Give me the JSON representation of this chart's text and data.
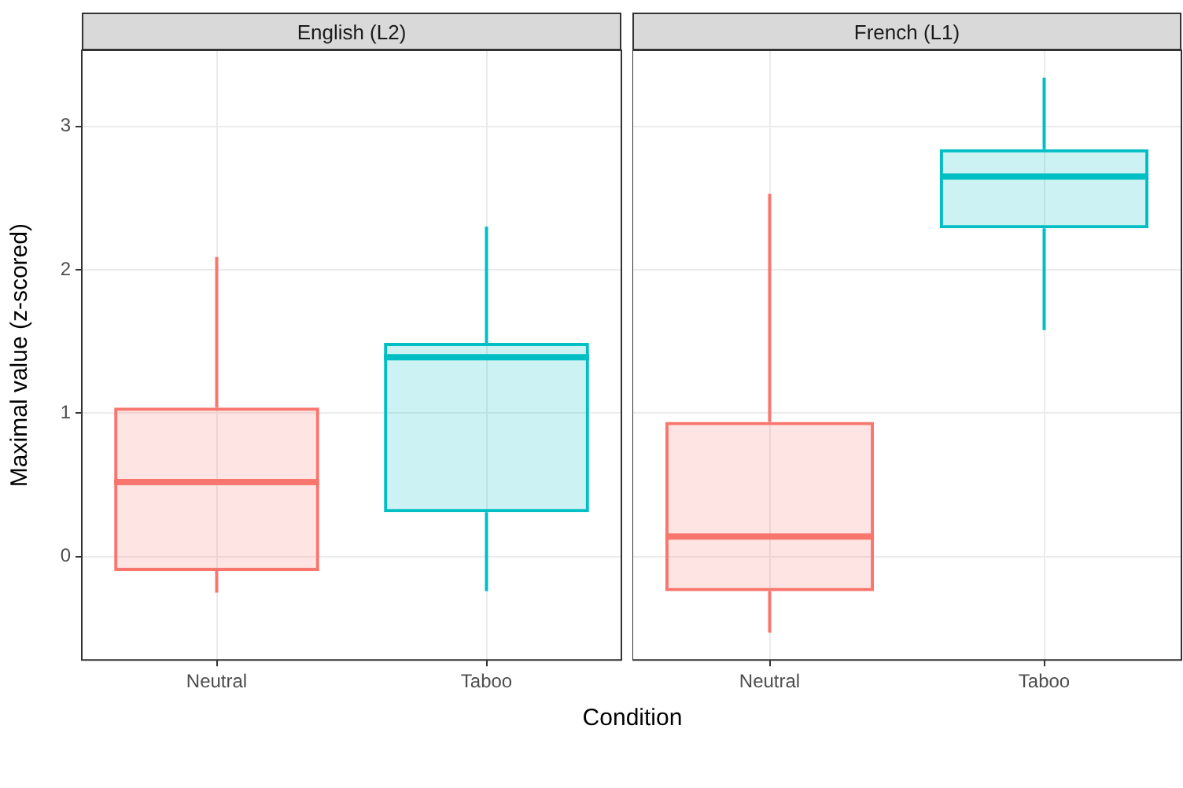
{
  "chart_data": [
    {
      "type": "box",
      "title": "English (L2)",
      "ylabel": "Maximal value (z-scored)",
      "xlabel": "Condition",
      "categories": [
        "Neutral",
        "Taboo"
      ],
      "ylim": [
        -0.72,
        3.53
      ],
      "yticks": [
        0,
        1,
        2,
        3
      ],
      "grid": true,
      "legend": false,
      "series": [
        {
          "colors": [
            "#f8766d",
            "#00bfc4"
          ],
          "boxes": [
            {
              "low": -0.25,
              "q1": -0.1,
              "median": 0.52,
              "q3": 1.04,
              "high": 2.09
            },
            {
              "low": -0.24,
              "q1": 0.31,
              "median": 1.39,
              "q3": 1.49,
              "high": 2.3
            }
          ]
        }
      ]
    },
    {
      "type": "box",
      "title": "French (L1)",
      "categories": [
        "Neutral",
        "Taboo"
      ],
      "ylim": [
        -0.72,
        3.53
      ],
      "yticks": [
        0,
        1,
        2,
        3
      ],
      "grid": true,
      "legend": false,
      "tick_labels": "x",
      "series": [
        {
          "colors": [
            "#f8766d",
            "#00bfc4"
          ],
          "boxes": [
            {
              "low": -0.53,
              "q1": -0.24,
              "median": 0.14,
              "q3": 0.94,
              "high": 2.53
            },
            {
              "low": 1.58,
              "q1": 2.29,
              "median": 2.65,
              "q3": 2.84,
              "high": 3.34
            }
          ]
        }
      ]
    }
  ]
}
